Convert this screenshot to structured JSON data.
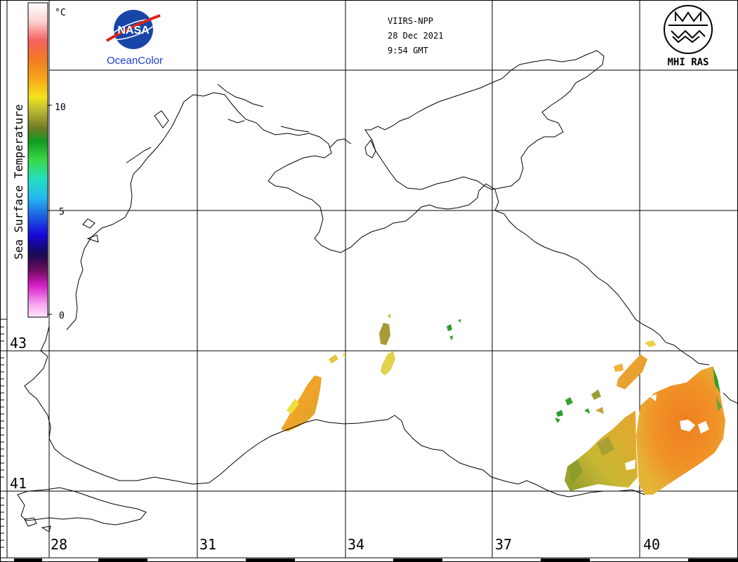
{
  "header": {
    "sensor": "VIIRS-NPP",
    "date": "28 Dec 2021",
    "time": "9:54 GMT"
  },
  "logos": {
    "nasa_text": "NASA",
    "oceancolor_text": "OceanColor",
    "mhi_text": "MHI RAS"
  },
  "colorbar": {
    "unit": "°C",
    "title": "Sea Surface Temperature",
    "tick_labels": [
      "10",
      "5",
      "0"
    ],
    "range": [
      0,
      15
    ]
  },
  "axes": {
    "lon_labels": [
      "28",
      "31",
      "34",
      "37",
      "40"
    ],
    "lat_labels": [
      "43",
      "41"
    ]
  },
  "colors": {
    "coast": "#000000",
    "grid": "#000000",
    "sst_warm": "#f08a1e",
    "sst_mid": "#e9b52a",
    "sst_cool": "#9aa43a",
    "sst_green": "#2e9e2a",
    "nasa_blue": "#1846a8",
    "nasa_red": "#d9231b"
  }
}
